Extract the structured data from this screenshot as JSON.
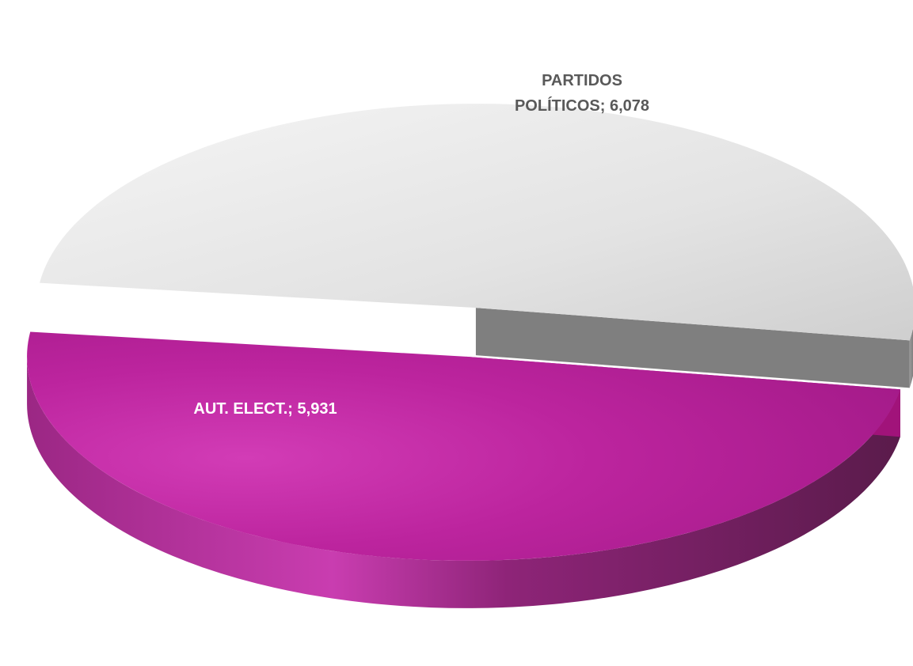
{
  "chart_data": {
    "type": "pie",
    "title": "",
    "slices": [
      {
        "name": "PARTIDOS POLÍTICOS",
        "value": 6078,
        "label_lines": [
          "PARTIDOS",
          "POLÍTICOS; 6,078"
        ],
        "color": "#e6e6e6",
        "side_color": "#8c8c8c"
      },
      {
        "name": "AUT. ELECT.",
        "value": 5931,
        "label_lines": [
          "AUT. ELECT.; 5,931"
        ],
        "color": "#b8229c",
        "side_color": "#7a1f66"
      }
    ],
    "legend": "none",
    "exploded": true,
    "style": "3d"
  }
}
